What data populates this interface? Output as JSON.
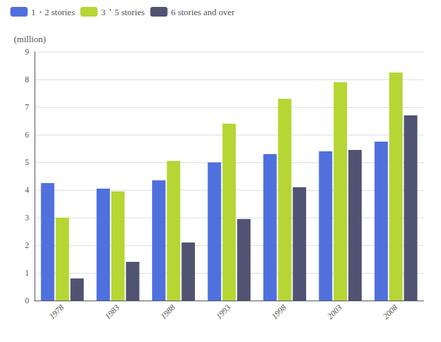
{
  "chart_data": {
    "type": "bar",
    "ylabel": "(million)",
    "categories": [
      "1978",
      "1983",
      "1988",
      "1993",
      "1998",
      "2003",
      "2008"
    ],
    "series": [
      {
        "name": "1・2 stories",
        "values": [
          4.25,
          4.05,
          4.35,
          5.0,
          5.3,
          5.4,
          5.75
        ]
      },
      {
        "name": "3＇5 stories",
        "values": [
          3.0,
          3.95,
          5.05,
          6.4,
          7.3,
          7.9,
          8.25
        ]
      },
      {
        "name": "6 stories and over",
        "values": [
          0.8,
          1.4,
          2.1,
          2.95,
          4.1,
          5.45,
          6.7
        ]
      }
    ],
    "ylim": [
      0,
      9
    ],
    "yticks": [
      0,
      1,
      2,
      3,
      4,
      5,
      6,
      7,
      8,
      9
    ],
    "grid": true,
    "legend": "upper left"
  }
}
